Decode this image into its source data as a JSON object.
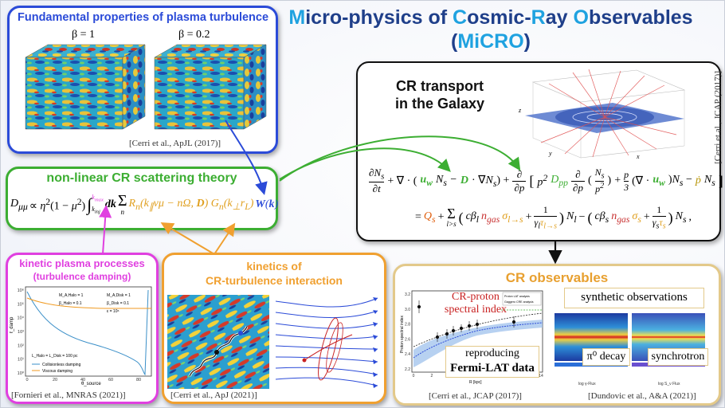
{
  "title": {
    "line1": [
      {
        "text": "M",
        "hl": true
      },
      {
        "text": "icro-physics of ",
        "hl": false
      },
      {
        "text": "C",
        "hl": true
      },
      {
        "text": "osmic-",
        "hl": false
      },
      {
        "text": "R",
        "hl": true
      },
      {
        "text": "ay ",
        "hl": false
      },
      {
        "text": "O",
        "hl": true
      },
      {
        "text": "bservables",
        "hl": false
      }
    ],
    "line2": [
      {
        "text": "(",
        "hl": false
      },
      {
        "text": "MiCRO",
        "hl": true
      },
      {
        "text": ")",
        "hl": false
      }
    ]
  },
  "colors": {
    "blue": "#2b4bd8",
    "green": "#3cae32",
    "magenta": "#e040e0",
    "orange": "#f0a030",
    "tan": "#e3c98a",
    "black": "#111111",
    "title_dark": "#1f3f8a",
    "title_light": "#1fa2e0"
  },
  "turbulence": {
    "title": "Fundamental properties of plasma turbulence",
    "beta1": "β = 1",
    "beta2": "β = 0.2",
    "citation": "[Cerri et al., ApJL (2017)]"
  },
  "transport": {
    "title_line1": "CR transport",
    "title_line2": "in the Galaxy",
    "citation": "[Cerri et al., JCAP (2017)]",
    "axis_x": "x",
    "axis_y": "y",
    "axis_z": "z"
  },
  "scattering": {
    "title": "non-linear CR scattering theory"
  },
  "kinetic": {
    "title": "kinetic plasma processes",
    "subtitle": "(turbulence damping)",
    "citation": "[Fornieri et al., MNRAS (2021)]",
    "legend1": "Collisionless damping",
    "legend2": "Viscous damping",
    "param1": "M_A,Halo = 1",
    "param2": "β_Halo = 0.1",
    "param3": "M_A,Disk = 1",
    "param4": "β_Disk = 0.1",
    "param5": "ε = 10⁶",
    "param6": "L_Halo = L_Disk = 100 pc",
    "ylabel": "ℓ_damp",
    "xlabel": "θ_source",
    "yticks": [
      "10⁶",
      "10⁵",
      "10⁴",
      "10³",
      "10²",
      "10¹",
      "10⁰"
    ],
    "xticks": [
      "0",
      "20",
      "40",
      "60",
      "80"
    ]
  },
  "interaction": {
    "title_line1": "kinetics of",
    "title_line2": "CR-turbulence interaction",
    "citation": "[Cerri et al., ApJ (2021)]"
  },
  "observables": {
    "title": "CR observables",
    "proton_line1": "CR-proton",
    "proton_line2": "spectral index",
    "reproducing": "reproducing",
    "fermi": "Fermi-LAT data",
    "synthetic": "synthetic observations",
    "pi0": "π⁰ decay",
    "synchrotron": "synchrotron",
    "citation1": "[Cerri et al., JCAP (2017)]",
    "citation2": "[Dundovic et al., A&A (2021)]",
    "legend_a": "Proton LAT analysis",
    "legend_b": "Gaggero CRE analysis",
    "ylabel": "Proton spectral index",
    "xlabel": "R [kpc]",
    "xticks": [
      "0",
      "2",
      "4",
      "6",
      "8",
      "10",
      "12",
      "14"
    ],
    "yticks": [
      "3.2",
      "3.0",
      "2.8",
      "2.6",
      "2.4",
      "2.2"
    ],
    "cbar1": "log γ-Flux",
    "cbar2": "log S_ν Flux"
  },
  "equations": {
    "transport_eq_aria": "∂N_s/∂t + ∇·(u_w N_s − D·∇N_s) + ∂/∂p[p² D_pp ∂/∂p(N_s/p²)] + p/3 (∇·u_w) N_s − ṗ N_s = Q_s + Σ_{l>s}(cβ_l n_gas σ_{l→s} + 1/(γ_l τ_{l→s})) N_l − (cβ_s n_gas σ_s + 1/(γ_s τ_s)) N_s",
    "diffusion_eq_aria": "D_μμ ∝ η²(1−μ²) ∫ dk Σ_n R_n(k∥vμ − nΩ, D) G_n(k⊥ r_L) W(k)"
  }
}
